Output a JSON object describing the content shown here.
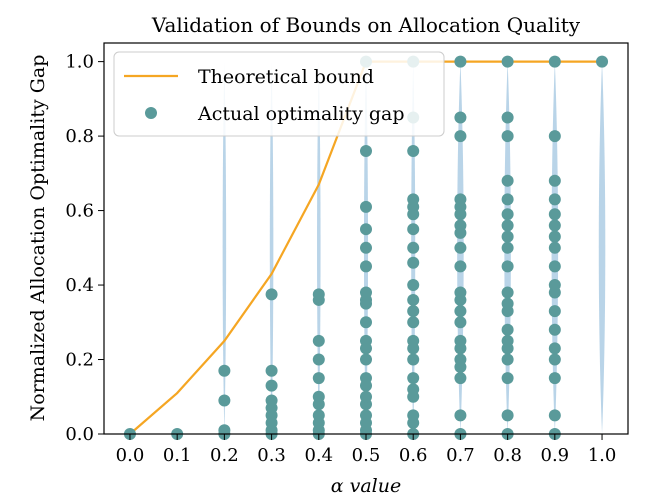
{
  "chart_data": {
    "type": "scatter",
    "title": "Validation of Bounds on Allocation Quality",
    "xlabel": "α value",
    "ylabel": "Normalized Allocation Optimality Gap",
    "xlim": [
      -0.055,
      1.055
    ],
    "ylim": [
      0.0,
      1.05
    ],
    "x_ticks": [
      "0.0",
      "0.1",
      "0.2",
      "0.3",
      "0.4",
      "0.5",
      "0.6",
      "0.7",
      "0.8",
      "0.9",
      "1.0"
    ],
    "y_ticks": [
      "0.0",
      "0.2",
      "0.4",
      "0.6",
      "0.8",
      "1.0"
    ],
    "legend_position": "top-left",
    "colors": {
      "bound": "#f5a623",
      "points": "#5a9a9a",
      "violin": "#a8c9e2"
    },
    "series": [
      {
        "name": "Theoretical bound",
        "kind": "line",
        "x": [
          0.0,
          0.1,
          0.2,
          0.3,
          0.4,
          0.5,
          0.6,
          0.7,
          0.8,
          0.9,
          1.0
        ],
        "y": [
          0.0,
          0.11,
          0.25,
          0.43,
          0.67,
          1.0,
          1.0,
          1.0,
          1.0,
          1.0,
          1.0
        ]
      },
      {
        "name": "Actual optimality gap",
        "kind": "scatter",
        "points": {
          "0.0": [
            0.0
          ],
          "0.1": [
            0.0
          ],
          "0.2": [
            0.0,
            0.01,
            0.09,
            0.17
          ],
          "0.3": [
            0.0,
            0.01,
            0.03,
            0.05,
            0.07,
            0.09,
            0.13,
            0.17,
            0.375
          ],
          "0.4": [
            0.0,
            0.01,
            0.03,
            0.05,
            0.08,
            0.1,
            0.15,
            0.2,
            0.25,
            0.36,
            0.375
          ],
          "0.5": [
            0.0,
            0.01,
            0.03,
            0.05,
            0.08,
            0.1,
            0.13,
            0.15,
            0.2,
            0.23,
            0.25,
            0.3,
            0.35,
            0.36,
            0.38,
            0.45,
            0.5,
            0.55,
            0.61,
            0.76,
            1.0
          ],
          "0.6": [
            0.0,
            0.03,
            0.05,
            0.1,
            0.12,
            0.15,
            0.2,
            0.23,
            0.25,
            0.3,
            0.33,
            0.36,
            0.4,
            0.46,
            0.5,
            0.55,
            0.59,
            0.61,
            0.63,
            0.76,
            0.85,
            1.0
          ],
          "0.7": [
            0.0,
            0.05,
            0.15,
            0.18,
            0.2,
            0.23,
            0.25,
            0.3,
            0.33,
            0.36,
            0.38,
            0.45,
            0.5,
            0.54,
            0.56,
            0.59,
            0.61,
            0.63,
            0.8,
            0.85,
            1.0
          ],
          "0.8": [
            0.0,
            0.05,
            0.15,
            0.2,
            0.23,
            0.25,
            0.28,
            0.33,
            0.35,
            0.38,
            0.45,
            0.5,
            0.53,
            0.56,
            0.59,
            0.63,
            0.68,
            0.8,
            0.85,
            1.0
          ],
          "0.9": [
            0.0,
            0.05,
            0.15,
            0.2,
            0.23,
            0.28,
            0.33,
            0.38,
            0.4,
            0.45,
            0.5,
            0.53,
            0.56,
            0.59,
            0.63,
            0.68,
            0.8,
            1.0
          ],
          "1.0": [
            1.0
          ]
        }
      }
    ]
  }
}
